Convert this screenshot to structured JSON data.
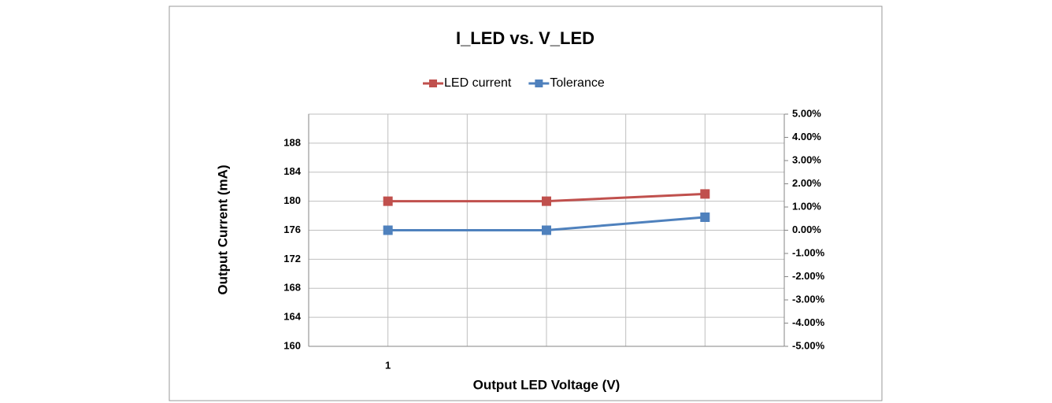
{
  "chart_data": {
    "type": "line",
    "title": "I_LED vs. V_LED",
    "x_label": "Output LED Voltage (V)",
    "y_label": "Output Current (mA)",
    "categories": [
      "1",
      null,
      null
    ],
    "series": [
      {
        "name": "LED current",
        "color": "#c0504d",
        "values": [
          180,
          180,
          181
        ]
      },
      {
        "name": "Tolerance",
        "color": "#4f81bd",
        "axis": "y2",
        "values": [
          0,
          0,
          0.56
        ]
      }
    ],
    "ylim": [
      160,
      192
    ],
    "yticks": [
      160,
      164,
      168,
      172,
      176,
      180,
      184,
      188
    ],
    "y2lim": [
      -5,
      5
    ],
    "y2ticks": [
      {
        "value": -5,
        "label": "-5.00%"
      },
      {
        "value": -4,
        "label": "-4.00%"
      },
      {
        "value": -3,
        "label": "-3.00%"
      },
      {
        "value": -2,
        "label": "-2.00%"
      },
      {
        "value": -1,
        "label": "-1.00%"
      },
      {
        "value": 0,
        "label": "0.00%"
      },
      {
        "value": 1,
        "label": "1.00%"
      },
      {
        "value": 2,
        "label": "2.00%"
      },
      {
        "value": 3,
        "label": "3.00%"
      },
      {
        "value": 4,
        "label": "4.00%"
      },
      {
        "value": 5,
        "label": "5.00%"
      }
    ],
    "grid": true,
    "legend": "top"
  }
}
